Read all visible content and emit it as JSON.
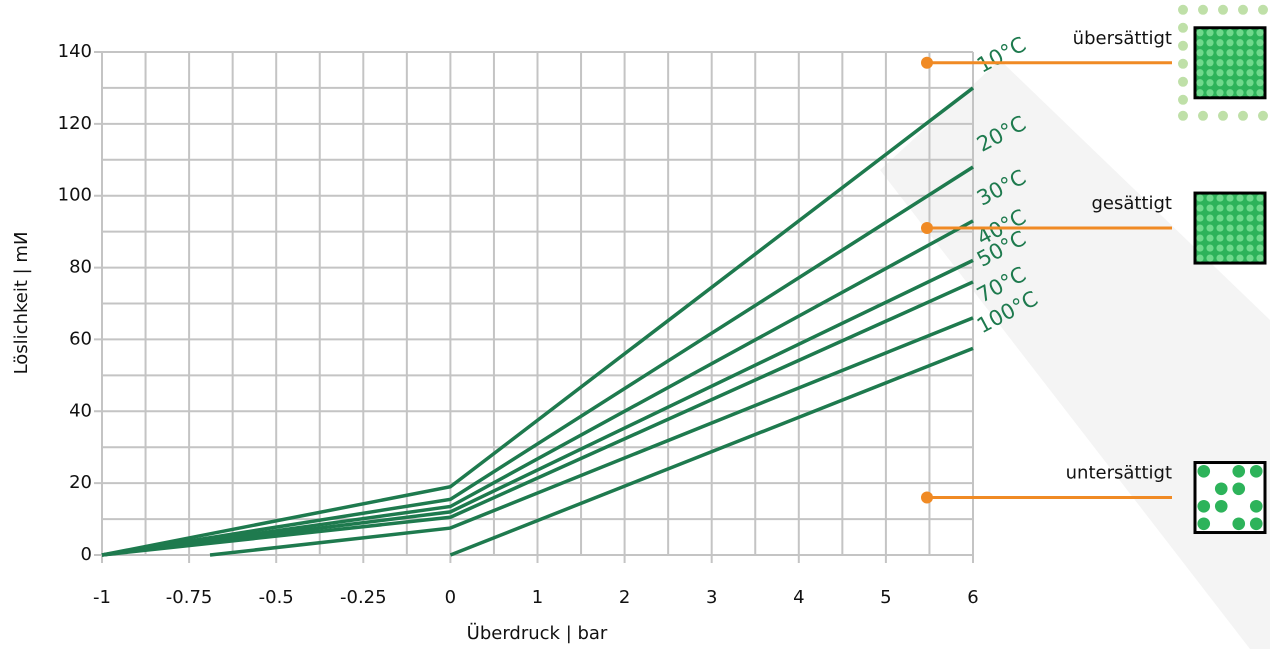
{
  "chart_data": {
    "type": "line",
    "xlabel": "Überdruck | bar",
    "ylabel": "Löslichkeit | mИ",
    "xticks": [
      -1,
      -0.75,
      -0.5,
      -0.25,
      0,
      1,
      2,
      3,
      4,
      5,
      6
    ],
    "xlim": [
      -1,
      6
    ],
    "ylim": [
      0,
      140
    ],
    "yticks": [
      0,
      20,
      40,
      60,
      80,
      100,
      120,
      140
    ],
    "grid": true,
    "series": [
      {
        "name": "10°C",
        "color": "#1e7a4e",
        "x": [
          -1,
          0,
          6
        ],
        "values": [
          0,
          19,
          130
        ]
      },
      {
        "name": "20°C",
        "color": "#1e7a4e",
        "x": [
          -1,
          0,
          6
        ],
        "values": [
          0,
          15.5,
          108
        ]
      },
      {
        "name": "30°C",
        "color": "#1e7a4e",
        "x": [
          -1,
          0,
          6
        ],
        "values": [
          0,
          13.5,
          93
        ]
      },
      {
        "name": "40°C",
        "color": "#1e7a4e",
        "x": [
          -1,
          0,
          6
        ],
        "values": [
          0,
          12,
          82
        ]
      },
      {
        "name": "50°C",
        "color": "#1e7a4e",
        "x": [
          -1,
          0,
          6
        ],
        "values": [
          0,
          10.5,
          76
        ]
      },
      {
        "name": "70°C",
        "color": "#1e7a4e",
        "x": [
          -0.69,
          0,
          6
        ],
        "values": [
          0,
          7.5,
          66
        ]
      },
      {
        "name": "100°C",
        "color": "#1e7a4e",
        "x": [
          0,
          6
        ],
        "values": [
          0,
          57.5
        ]
      }
    ],
    "annotations": [
      {
        "text": "übersättigt",
        "y": 137
      },
      {
        "text": "gesättigt",
        "y": 91
      },
      {
        "text": "untersättigt",
        "y": 16
      }
    ]
  }
}
